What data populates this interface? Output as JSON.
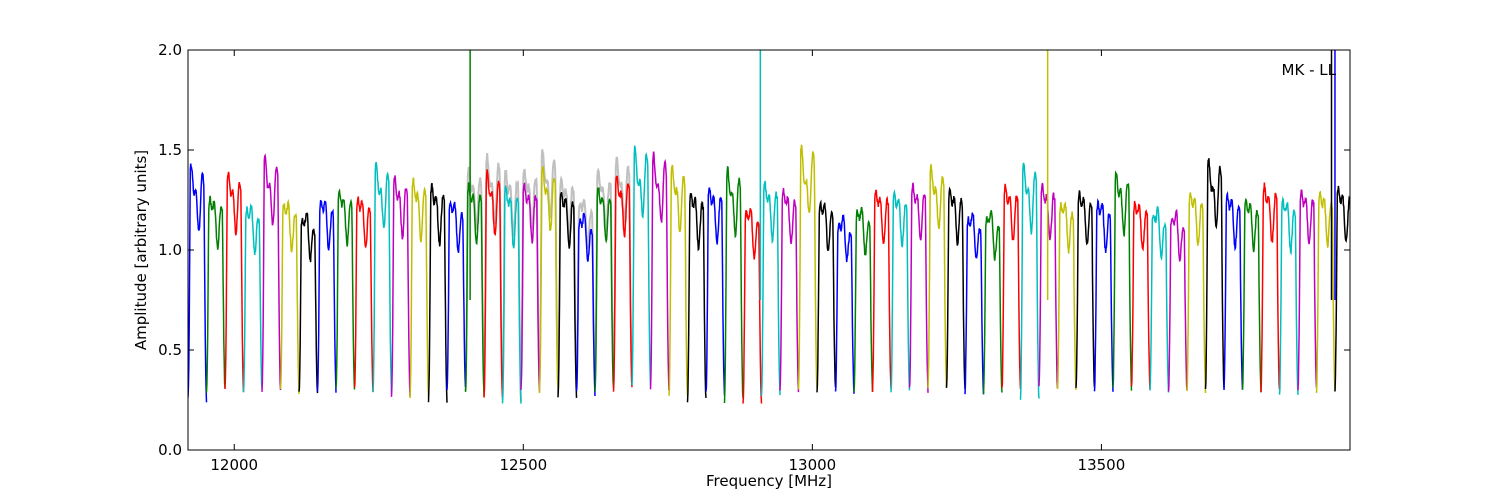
{
  "chart_data": {
    "type": "line",
    "title": "",
    "xlabel": "Frequency [MHz]",
    "ylabel": "Amplitude [arbitrary units]",
    "xlim": [
      11920,
      13930
    ],
    "ylim": [
      0.0,
      2.0
    ],
    "xticks": [
      12000,
      12500,
      13000,
      13500
    ],
    "yticks": [
      0.0,
      0.5,
      1.0,
      1.5,
      2.0
    ],
    "ytick_labels": [
      "0.0",
      "0.5",
      "1.0",
      "1.5",
      "2.0"
    ],
    "annotation": "MK - LL",
    "annotation_position": "top-right",
    "grid": false,
    "legend": "none",
    "colors": [
      "#0000ff",
      "#008000",
      "#ff0000",
      "#00bfbf",
      "#bf00bf",
      "#bfbf00",
      "#000000"
    ],
    "background_trace_color": "#c0c0c0",
    "channel_width_mhz": 32,
    "channel_starts_mhz": [
      11920,
      11952,
      11984,
      12016,
      12048,
      12080,
      12112,
      12144,
      12176,
      12208,
      12240,
      12272,
      12304,
      12336,
      12368,
      12400,
      12432,
      12464,
      12496,
      12528,
      12560,
      12592,
      12624,
      12656,
      12688,
      12720,
      12752,
      12784,
      12816,
      12848,
      12880,
      12912,
      12944,
      12976,
      13008,
      13040,
      13072,
      13104,
      13136,
      13168,
      13200,
      13232,
      13264,
      13296,
      13328,
      13360,
      13392,
      13424,
      13456,
      13488,
      13520,
      13552,
      13584,
      13616,
      13648,
      13680,
      13712,
      13744,
      13776,
      13808,
      13840,
      13872,
      13904
    ],
    "channel_peaks": [
      1.41,
      1.28,
      1.38,
      1.24,
      1.44,
      1.26,
      1.2,
      1.27,
      1.31,
      1.28,
      1.41,
      1.36,
      1.35,
      1.33,
      1.26,
      1.33,
      1.38,
      1.32,
      1.33,
      1.4,
      1.3,
      1.2,
      1.32,
      1.37,
      1.48,
      1.45,
      1.4,
      1.3,
      1.32,
      1.39,
      1.23,
      1.34,
      1.31,
      1.49,
      1.26,
      1.18,
      1.23,
      1.31,
      1.3,
      1.33,
      1.4,
      1.31,
      1.2,
      1.21,
      1.33,
      1.41,
      1.33,
      1.26,
      1.3,
      1.26,
      1.38,
      1.26,
      1.22,
      1.2,
      1.3,
      1.43,
      1.29,
      1.27,
      1.33,
      1.27,
      1.31,
      1.3,
      1.32
    ],
    "channel_troughs": [
      0.25,
      0.3,
      0.3,
      0.3,
      0.29,
      0.29,
      0.28,
      0.3,
      0.3,
      0.3,
      0.29,
      0.28,
      0.27,
      0.25,
      0.3,
      0.28,
      0.25,
      0.23,
      0.3,
      0.3,
      0.27,
      0.28,
      0.3,
      0.3,
      0.33,
      0.3,
      0.26,
      0.25,
      0.28,
      0.25,
      0.22,
      0.28,
      0.3,
      0.3,
      0.3,
      0.29,
      0.3,
      0.3,
      0.29,
      0.3,
      0.31,
      0.3,
      0.29,
      0.28,
      0.3,
      0.25,
      0.31,
      0.3,
      0.3,
      0.3,
      0.3,
      0.31,
      0.3,
      0.29,
      0.3,
      0.3,
      0.3,
      0.29,
      0.29,
      0.27,
      0.3,
      0.3,
      0.3
    ],
    "spikes": [
      {
        "x": 12408,
        "value": 2.0,
        "color": "#008000"
      },
      {
        "x": 12910,
        "value": 2.0,
        "color": "#00bfbf"
      },
      {
        "x": 13407,
        "value": 2.0,
        "color": "#bfbf00"
      },
      {
        "x": 13898,
        "value": 2.0,
        "color": "#000000"
      },
      {
        "x": 13904,
        "value": 2.0,
        "color": "#0000ff"
      }
    ]
  }
}
